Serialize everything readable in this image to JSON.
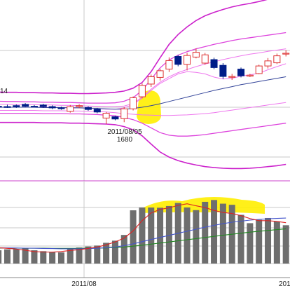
{
  "chart_data": {
    "type": "candlestick",
    "price_panel": {
      "annotations": [
        {
          "date": "2011/08/05",
          "value": "1680"
        }
      ],
      "candles": [
        {
          "o": 1741,
          "c": 1731,
          "h": 1744,
          "l": 1728,
          "up": false
        },
        {
          "o": 1736,
          "c": 1735,
          "h": 1742,
          "l": 1731,
          "up": false
        },
        {
          "o": 1735,
          "c": 1735,
          "h": 1741,
          "l": 1731,
          "up": false
        },
        {
          "o": 1738,
          "c": 1735,
          "h": 1742,
          "l": 1731,
          "up": false
        },
        {
          "o": 1742,
          "c": 1736,
          "h": 1746,
          "l": 1734,
          "up": false
        },
        {
          "o": 1736,
          "c": 1736,
          "h": 1740,
          "l": 1733,
          "up": false
        },
        {
          "o": 1740,
          "c": 1735,
          "h": 1744,
          "l": 1731,
          "up": false
        },
        {
          "o": 1735,
          "c": 1731,
          "h": 1739,
          "l": 1727,
          "up": false
        },
        {
          "o": 1731,
          "c": 1729,
          "h": 1735,
          "l": 1725,
          "up": false
        },
        {
          "o": 1720,
          "c": 1735,
          "h": 1740,
          "l": 1716,
          "up": true
        },
        {
          "o": 1735,
          "c": 1738,
          "h": 1742,
          "l": 1730,
          "up": true
        },
        {
          "o": 1732,
          "c": 1726,
          "h": 1736,
          "l": 1722,
          "up": false
        },
        {
          "o": 1727,
          "c": 1718,
          "h": 1731,
          "l": 1714,
          "up": false
        },
        {
          "o": 1699,
          "c": 1714,
          "h": 1718,
          "l": 1680,
          "up": true
        },
        {
          "o": 1703,
          "c": 1696,
          "h": 1706,
          "l": 1692,
          "up": false
        },
        {
          "o": 1697,
          "c": 1728,
          "h": 1733,
          "l": 1686,
          "up": true
        },
        {
          "o": 1728,
          "c": 1763,
          "h": 1767,
          "l": 1723,
          "up": true
        },
        {
          "o": 1766,
          "c": 1802,
          "h": 1808,
          "l": 1761,
          "up": true
        },
        {
          "o": 1806,
          "c": 1829,
          "h": 1836,
          "l": 1797,
          "up": true
        },
        {
          "o": 1827,
          "c": 1848,
          "h": 1854,
          "l": 1817,
          "up": true
        },
        {
          "o": 1853,
          "c": 1880,
          "h": 1890,
          "l": 1844,
          "up": true
        },
        {
          "o": 1893,
          "c": 1868,
          "h": 1898,
          "l": 1862,
          "up": false
        },
        {
          "o": 1868,
          "c": 1896,
          "h": 1904,
          "l": 1849,
          "up": true
        },
        {
          "o": 1891,
          "c": 1906,
          "h": 1918,
          "l": 1887,
          "up": true
        },
        {
          "o": 1872,
          "c": 1898,
          "h": 1904,
          "l": 1867,
          "up": true
        },
        {
          "o": 1883,
          "c": 1858,
          "h": 1889,
          "l": 1853,
          "up": false
        },
        {
          "o": 1865,
          "c": 1830,
          "h": 1872,
          "l": 1822,
          "up": false
        },
        {
          "o": 1830,
          "c": 1828,
          "h": 1838,
          "l": 1819,
          "up": true
        },
        {
          "o": 1853,
          "c": 1832,
          "h": 1858,
          "l": 1827,
          "up": false
        },
        {
          "o": 1831,
          "c": 1834,
          "h": 1838,
          "l": 1828,
          "up": true
        },
        {
          "o": 1839,
          "c": 1863,
          "h": 1867,
          "l": 1837,
          "up": true
        },
        {
          "o": 1863,
          "c": 1879,
          "h": 1888,
          "l": 1855,
          "up": true
        },
        {
          "o": 1873,
          "c": 1895,
          "h": 1902,
          "l": 1869,
          "up": true
        },
        {
          "o": 1903,
          "c": 1903,
          "h": 1913,
          "l": 1893,
          "up": true
        }
      ],
      "bands": {
        "outer_upper": [
          1782,
          1781,
          1780,
          1780,
          1779,
          1779,
          1778,
          1778,
          1777,
          1777,
          1776,
          1776,
          1777,
          1778,
          1780,
          1784,
          1793,
          1811,
          1845,
          1889,
          1931,
          1962,
          1986,
          2006,
          2021,
          2032,
          2041,
          2049,
          2055,
          2060,
          2066,
          2073,
          2078,
          2084
        ],
        "inner_upper": [
          1752,
          1752,
          1751,
          1751,
          1750,
          1750,
          1749,
          1749,
          1748,
          1748,
          1747,
          1746,
          1746,
          1746,
          1747,
          1752,
          1763,
          1786,
          1821,
          1857,
          1882,
          1897,
          1908,
          1917,
          1924,
          1931,
          1937,
          1943,
          1948,
          1952,
          1956,
          1960,
          1964,
          1968
        ],
        "upper_sigma1": [
          1742,
          1742,
          1742,
          1741,
          1741,
          1741,
          1740,
          1740,
          1739,
          1739,
          1738,
          1737,
          1736,
          1735,
          1735,
          1737,
          1745,
          1765,
          1790,
          1812,
          1829,
          1842,
          1852,
          1861,
          1869,
          1876,
          1883,
          1889,
          1895,
          1900,
          1904,
          1909,
          1913,
          1917
        ],
        "pink_ma": [
          1733,
          1733,
          1733,
          1733,
          1733,
          1733,
          1733,
          1733,
          1732,
          1732,
          1731,
          1730,
          1729,
          1727,
          1727,
          1731,
          1742,
          1762,
          1786,
          1808,
          1823,
          1838,
          1845,
          1843,
          1838,
          1828,
          1822,
          1824,
          1831,
          1835,
          1840,
          1851,
          1861,
          1870
        ],
        "middle": [
          1733,
          1733,
          1733,
          1733,
          1733,
          1733,
          1732,
          1732,
          1732,
          1731,
          1731,
          1730,
          1729,
          1728,
          1727,
          1727,
          1729,
          1733,
          1738,
          1744,
          1751,
          1758,
          1765,
          1772,
          1779,
          1786,
          1792,
          1798,
          1804,
          1809,
          1814,
          1819,
          1824,
          1829
        ],
        "lower_sigma1": [
          1723,
          1723,
          1723,
          1723,
          1723,
          1723,
          1722,
          1722,
          1722,
          1721,
          1721,
          1720,
          1719,
          1718,
          1716,
          1713,
          1711,
          1709,
          1708,
          1707,
          1707,
          1708,
          1709,
          1711,
          1713,
          1716,
          1720,
          1724,
          1728,
          1732,
          1736,
          1740,
          1744,
          1748
        ],
        "inner_lower": [
          1714,
          1714,
          1714,
          1714,
          1714,
          1714,
          1713,
          1713,
          1713,
          1712,
          1712,
          1711,
          1710,
          1708,
          1706,
          1701,
          1694,
          1683,
          1668,
          1653,
          1645,
          1642,
          1642,
          1644,
          1647,
          1651,
          1655,
          1659,
          1663,
          1667,
          1671,
          1675,
          1679,
          1683
        ],
        "outer_lower": [
          1685,
          1685,
          1685,
          1685,
          1685,
          1685,
          1684,
          1684,
          1684,
          1683,
          1683,
          1682,
          1681,
          1680,
          1678,
          1672,
          1662,
          1643,
          1617,
          1592,
          1576,
          1565,
          1557,
          1551,
          1546,
          1543,
          1541,
          1540,
          1540,
          1541,
          1543,
          1546,
          1549,
          1553
        ]
      }
    },
    "volume_panel": {
      "volumes": [
        152,
        130,
        139,
        140,
        148,
        130,
        121,
        110,
        109,
        151,
        157,
        167,
        176,
        203,
        224,
        280,
        521,
        548,
        548,
        546,
        563,
        593,
        549,
        523,
        604,
        622,
        586,
        575,
        477,
        395,
        428,
        446,
        413,
        375
      ],
      "ma_short": [
        158,
        155,
        149,
        142,
        130,
        117,
        113,
        112,
        118,
        128,
        136,
        148,
        162,
        183,
        212,
        250,
        320,
        420,
        495,
        530,
        545,
        569,
        585,
        565,
        548,
        520,
        500,
        490,
        469,
        440,
        420,
        420,
        412,
        400
      ],
      "ma_mid": [
        154,
        154,
        153,
        152,
        151,
        150,
        148,
        147,
        145,
        145,
        145,
        147,
        150,
        154,
        162,
        175,
        193,
        214,
        235,
        256,
        276,
        296,
        316,
        336,
        356,
        374,
        390,
        405,
        415,
        425,
        432,
        438,
        442,
        445
      ],
      "ma_long": [
        151,
        151,
        151,
        151,
        150,
        150,
        150,
        149,
        149,
        149,
        149,
        150,
        151,
        153,
        157,
        162,
        170,
        180,
        190,
        201,
        211,
        222,
        233,
        244,
        255,
        266,
        277,
        287,
        297,
        307,
        316,
        324,
        332,
        340
      ]
    },
    "x_axis": {
      "tick_labels": [
        "2011/08",
        "201"
      ]
    },
    "price_axis": {
      "edge_label": "14"
    },
    "colors": {
      "up_candle_border": "#dd3333",
      "down_candle": "#001d88",
      "outer_band": "#cc22cc",
      "inner_band": "#dd44dd",
      "sigma1_band": "#ee77ee",
      "pink_ma": "#ee77ee",
      "middle_line": "#334499",
      "volume_bar": "#6e6e6e",
      "volume_ma_short": "#dd2222",
      "volume_ma_mid": "#4455cc",
      "volume_ma_long": "#228822",
      "highlight": "#ffee00",
      "grid": "#c8c8c8"
    }
  }
}
